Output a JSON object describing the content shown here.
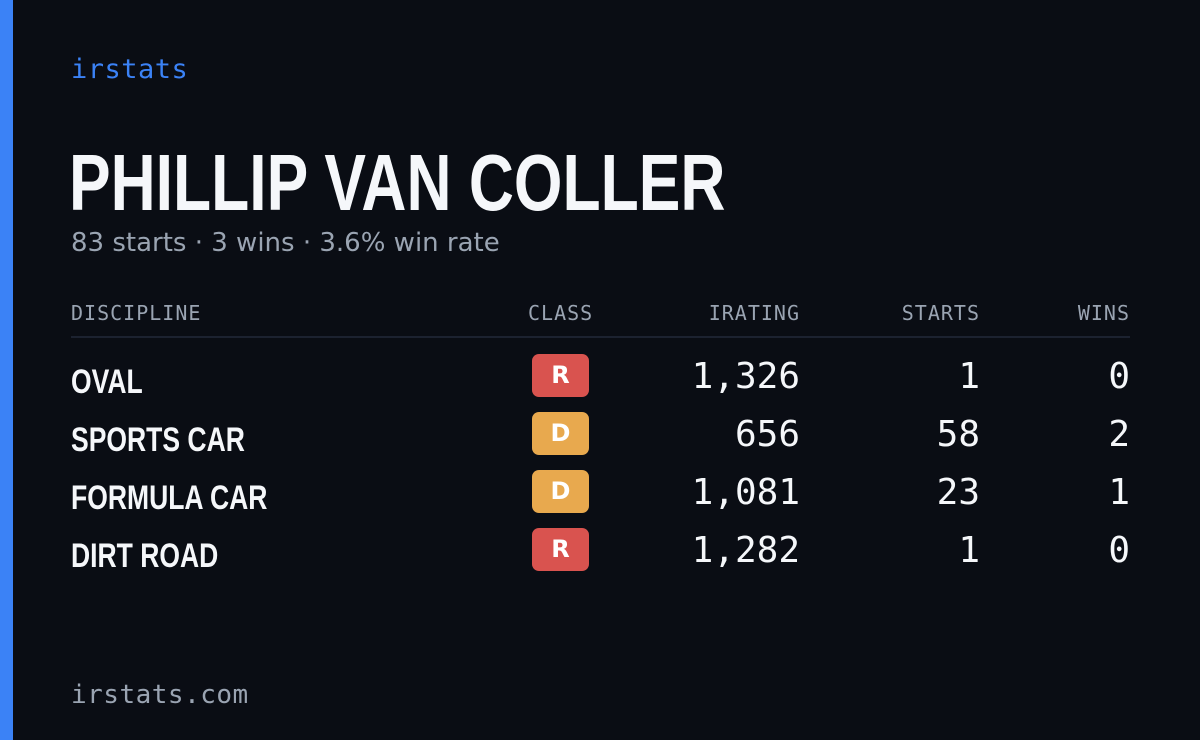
{
  "brand": "irstats",
  "player": {
    "name": "PHILLIP VAN COLLER",
    "summary": "83 starts · 3 wins · 3.6% win rate"
  },
  "table": {
    "headers": {
      "discipline": "DISCIPLINE",
      "class": "CLASS",
      "irating": "IRATING",
      "starts": "STARTS",
      "wins": "WINS"
    },
    "rows": [
      {
        "discipline": "OVAL",
        "class": "R",
        "class_color": "#d9534f",
        "irating": "1,326",
        "starts": "1",
        "wins": "0"
      },
      {
        "discipline": "SPORTS CAR",
        "class": "D",
        "class_color": "#e8a94e",
        "irating": "656",
        "starts": "58",
        "wins": "2"
      },
      {
        "discipline": "FORMULA CAR",
        "class": "D",
        "class_color": "#e8a94e",
        "irating": "1,081",
        "starts": "23",
        "wins": "1"
      },
      {
        "discipline": "DIRT ROAD",
        "class": "R",
        "class_color": "#d9534f",
        "irating": "1,282",
        "starts": "1",
        "wins": "0"
      }
    ]
  },
  "footer": "irstats.com",
  "colors": {
    "background": "#0a0d14",
    "accent": "#3b82f6",
    "text_primary": "#f5f7fa",
    "text_muted": "#9aa4b2"
  }
}
